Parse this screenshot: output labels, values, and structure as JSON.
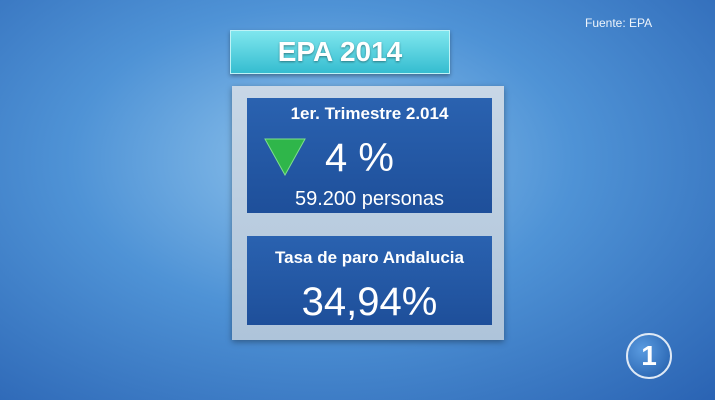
{
  "source": "Fuente: EPA",
  "title": "EPA 2014",
  "panels": [
    {
      "heading": "1er. Trimestre 2.014",
      "value": "4 %",
      "detail": "59.200 personas"
    },
    {
      "heading": "Tasa de paro Andalucia",
      "value": "34,94%"
    }
  ],
  "logo": "1"
}
